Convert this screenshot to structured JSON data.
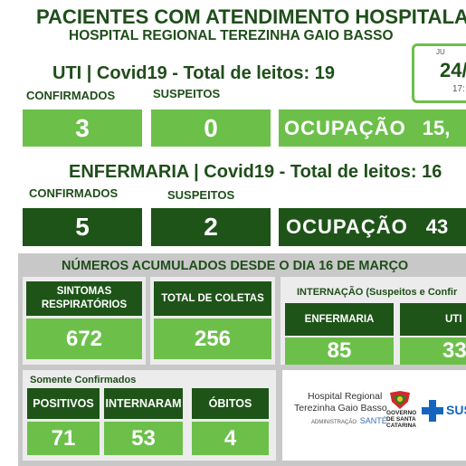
{
  "header": {
    "title": "PACIENTES COM ATENDIMENTO HOSPITALA",
    "subtitle": "HOSPITAL REGIONAL TEREZINHA GAIO BASSO"
  },
  "date_box": {
    "month_partial": "JU",
    "date_partial": "24/",
    "time_partial": "17:"
  },
  "uti": {
    "title": "UTI | Covid19 - Total de leitos: 19",
    "confirmed_label": "CONFIRMADOS",
    "suspect_label": "SUSPEITOS",
    "confirmed": "3",
    "suspect": "0",
    "occupancy_label": "OCUPAÇÃO",
    "occupancy_value": "15,"
  },
  "enfermaria": {
    "title": "ENFERMARIA | Covid19 - Total de leitos: 16",
    "confirmed_label": "CONFIRMADOS",
    "suspect_label": "SUSPEITOS",
    "confirmed": "5",
    "suspect": "2",
    "occupancy_label": "OCUPAÇÃO",
    "occupancy_value": "43"
  },
  "accum": {
    "title": "NÚMEROS ACUMULADOS DESDE O DIA 16 DE MARÇO",
    "symptoms_label": "SINTOMAS RESPIRATÓRIOS",
    "symptoms_value": "672",
    "collections_label": "TOTAL DE COLETAS",
    "collections_value": "256",
    "internacao_label": "INTERNAÇÃO (Suspeitos e Confir",
    "enfermaria_label": "ENFERMARIA",
    "enfermaria_value": "85",
    "uti_label": "UTI",
    "uti_value": "33",
    "confirmed_only_label": "Somente Confirmados",
    "positives_label": "POSITIVOS",
    "positives_value": "71",
    "hospitalized_label": "INTERNARAM",
    "hospitalized_value": "53",
    "deaths_label": "ÓBITOS",
    "deaths_value": "4"
  },
  "footer": {
    "hospital_line1": "Hospital Regional",
    "hospital_line2": "Terezinha Gaio Basso",
    "admin_prefix": "ADMINISTRAÇÃO",
    "admin_name": "SANTÉ",
    "gov_line1": "GOVERNO",
    "gov_line2": "DE SANTA",
    "gov_line3": "CATARINA",
    "sus_label": "SUS"
  }
}
